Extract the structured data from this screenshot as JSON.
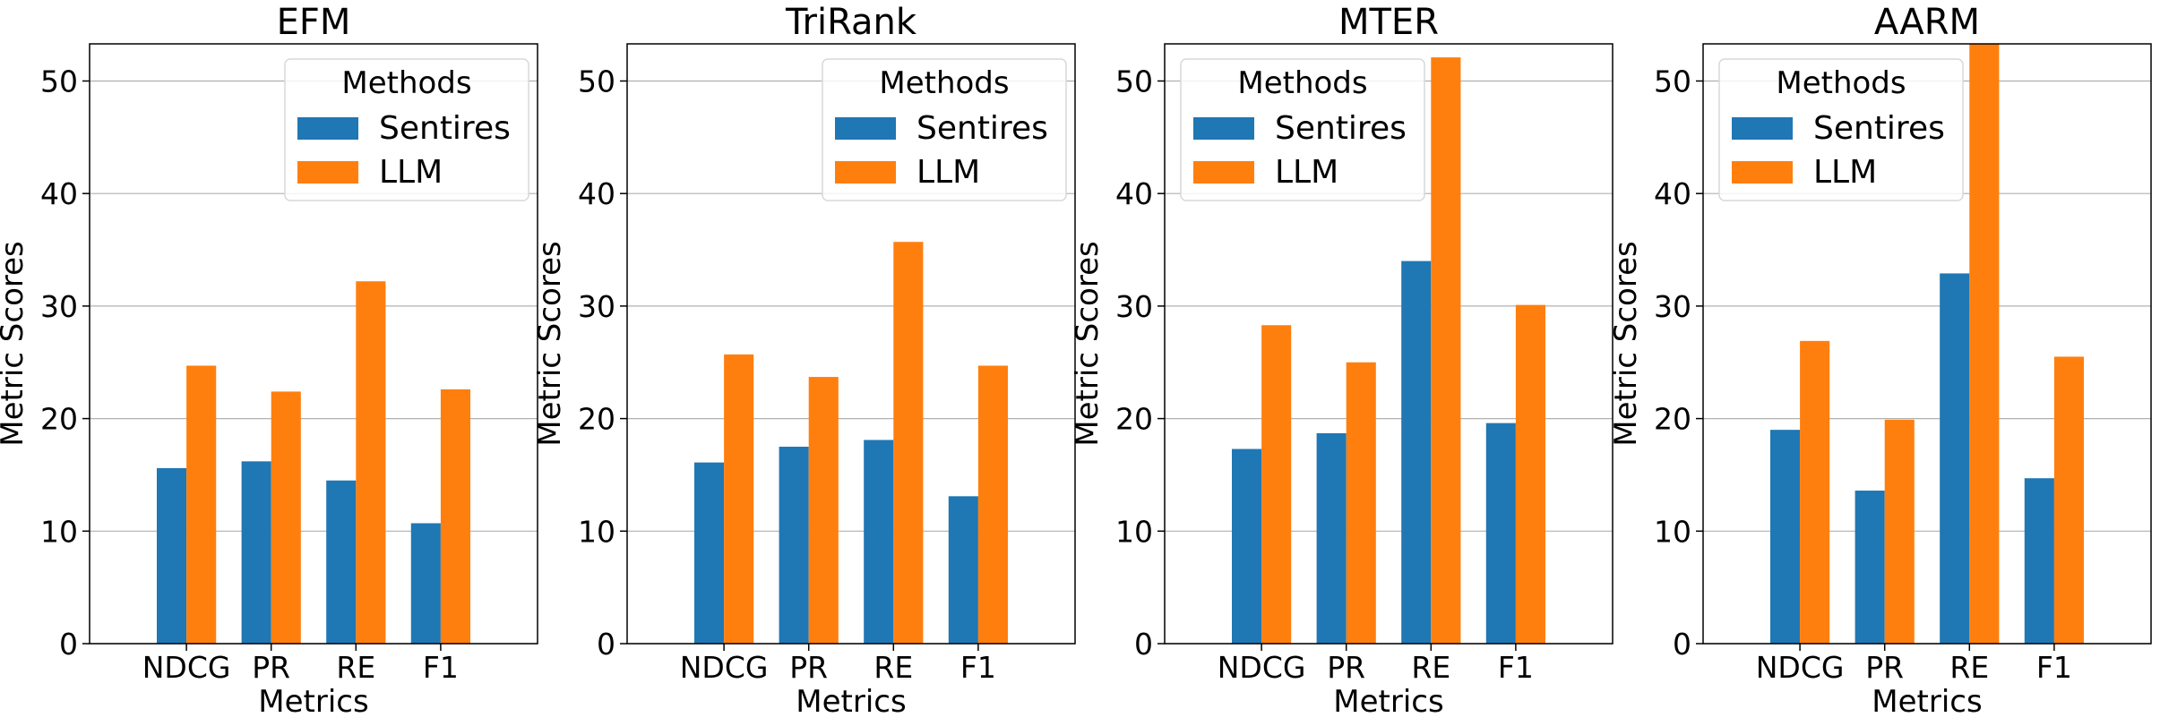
{
  "colors": {
    "Sentires": "#1f77b4",
    "LLM": "#ff7f0e"
  },
  "chart_data": [
    {
      "type": "bar",
      "title": "EFM",
      "xlabel": "Metrics",
      "ylabel": "Metric Scores",
      "categories": [
        "NDCG",
        "PR",
        "RE",
        "F1"
      ],
      "ylim": [
        0,
        53.3
      ],
      "yticks": [
        0,
        10,
        20,
        30,
        40,
        50
      ],
      "grid": "y",
      "legend": {
        "title": "Methods",
        "placement": "top-right"
      },
      "series": [
        {
          "name": "Sentires",
          "values": [
            15.6,
            16.2,
            14.5,
            10.7
          ]
        },
        {
          "name": "LLM",
          "values": [
            24.7,
            22.4,
            32.2,
            22.6
          ]
        }
      ]
    },
    {
      "type": "bar",
      "title": "TriRank",
      "xlabel": "Metrics",
      "ylabel": "Metric Scores",
      "categories": [
        "NDCG",
        "PR",
        "RE",
        "F1"
      ],
      "ylim": [
        0,
        53.3
      ],
      "yticks": [
        0,
        10,
        20,
        30,
        40,
        50
      ],
      "grid": "y",
      "legend": {
        "title": "Methods",
        "placement": "top-right"
      },
      "series": [
        {
          "name": "Sentires",
          "values": [
            16.1,
            17.5,
            18.1,
            13.1
          ]
        },
        {
          "name": "LLM",
          "values": [
            25.7,
            23.7,
            35.7,
            24.7
          ]
        }
      ]
    },
    {
      "type": "bar",
      "title": "MTER",
      "xlabel": "Metrics",
      "ylabel": "Metric Scores",
      "categories": [
        "NDCG",
        "PR",
        "RE",
        "F1"
      ],
      "ylim": [
        0,
        53.3
      ],
      "yticks": [
        0,
        10,
        20,
        30,
        40,
        50
      ],
      "grid": "y",
      "legend": {
        "title": "Methods",
        "placement": "top-left"
      },
      "series": [
        {
          "name": "Sentires",
          "values": [
            17.3,
            18.7,
            34.0,
            19.6
          ]
        },
        {
          "name": "LLM",
          "values": [
            28.3,
            25.0,
            52.1,
            30.1
          ]
        }
      ]
    },
    {
      "type": "bar",
      "title": "AARM",
      "xlabel": "Metrics",
      "ylabel": "Metric Scores",
      "categories": [
        "NDCG",
        "PR",
        "RE",
        "F1"
      ],
      "ylim": [
        0,
        53.3
      ],
      "yticks": [
        0,
        10,
        20,
        30,
        40,
        50
      ],
      "grid": "y",
      "legend": {
        "title": "Methods",
        "placement": "top-left"
      },
      "series": [
        {
          "name": "Sentires",
          "values": [
            19.0,
            13.6,
            32.9,
            14.7
          ]
        },
        {
          "name": "LLM",
          "values": [
            26.9,
            19.9,
            53.3,
            25.5
          ]
        }
      ]
    }
  ]
}
